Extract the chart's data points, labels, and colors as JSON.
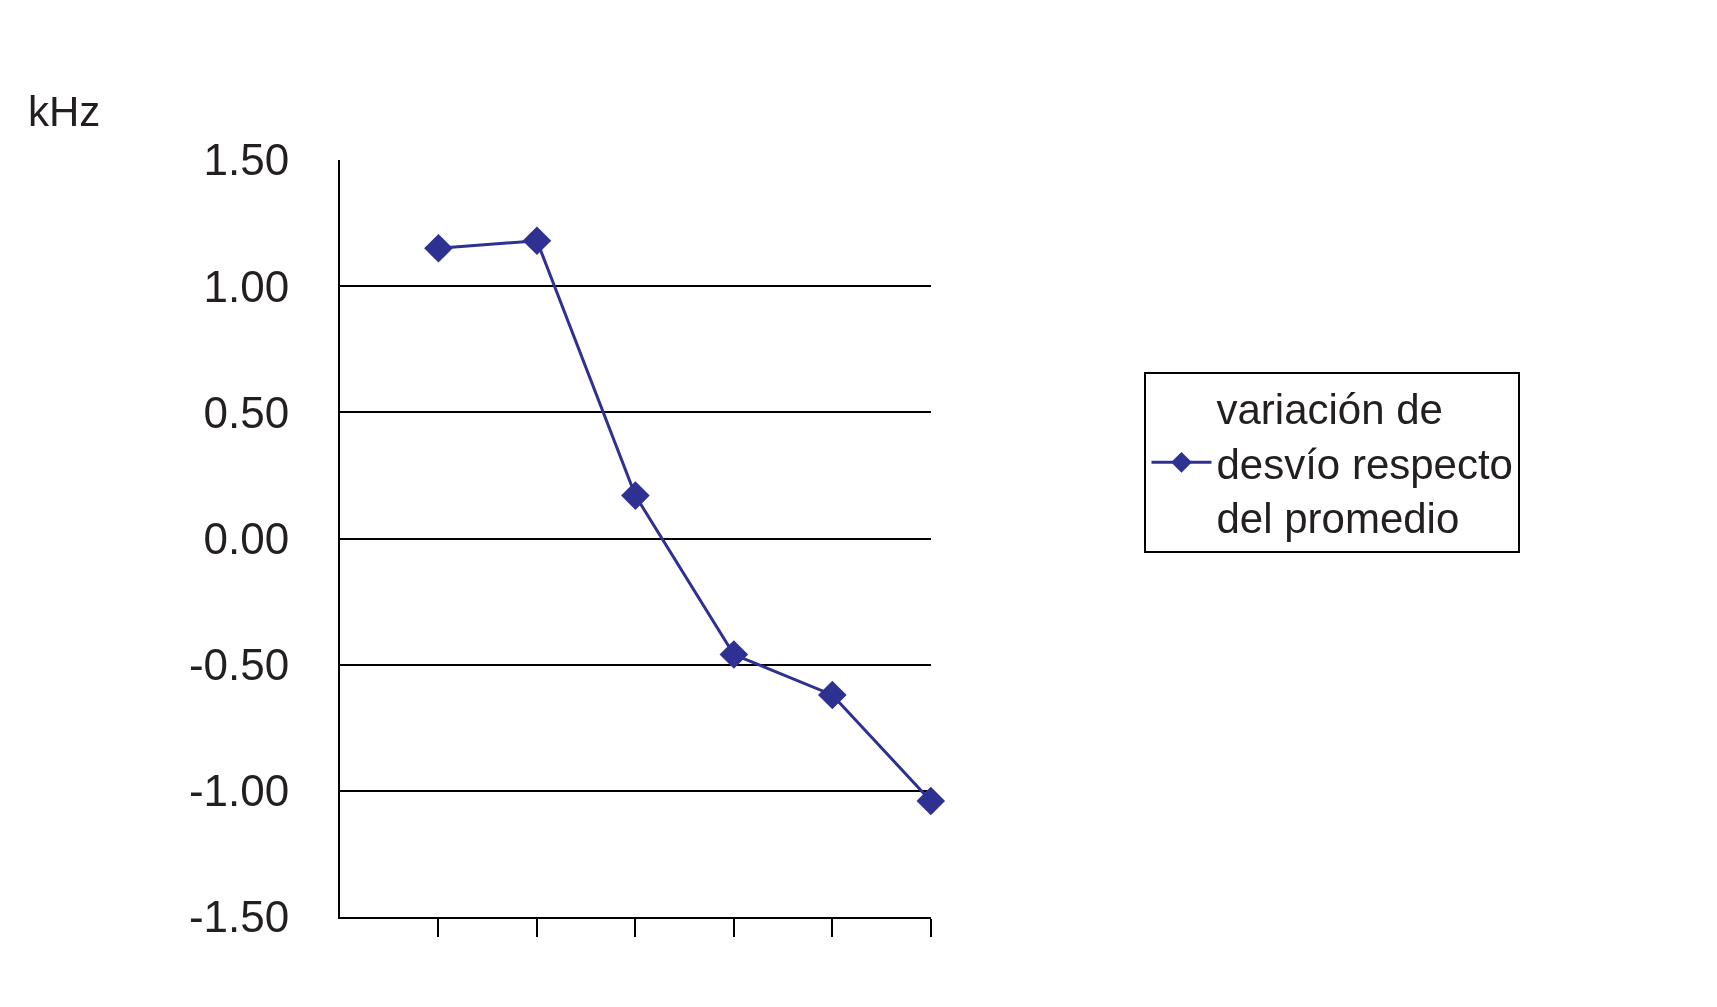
{
  "chart_data": {
    "type": "line",
    "ylabel": "kHz",
    "categories": [
      null,
      null,
      null,
      null,
      null,
      null
    ],
    "series": [
      {
        "name": "variación de desvío respecto del promedio",
        "color": "#2e3192",
        "values": [
          1.15,
          1.18,
          0.17,
          -0.46,
          -0.62,
          -1.04
        ]
      }
    ],
    "ylim": [
      -1.5,
      1.5
    ],
    "yticks": [
      {
        "value": -1.5,
        "label": "-1.50"
      },
      {
        "value": -1.0,
        "label": "-1.00"
      },
      {
        "value": -0.5,
        "label": "-0.50"
      },
      {
        "value": 0,
        "label": "0.00"
      },
      {
        "value": 0.5,
        "label": "0.50"
      },
      {
        "value": 1.0,
        "label": "1.00"
      },
      {
        "value": 1.5,
        "label": "1.50"
      }
    ],
    "grid": "y",
    "legend": "right",
    "marker": "diamond",
    "line_style": "solid",
    "tick_labels": "y"
  }
}
